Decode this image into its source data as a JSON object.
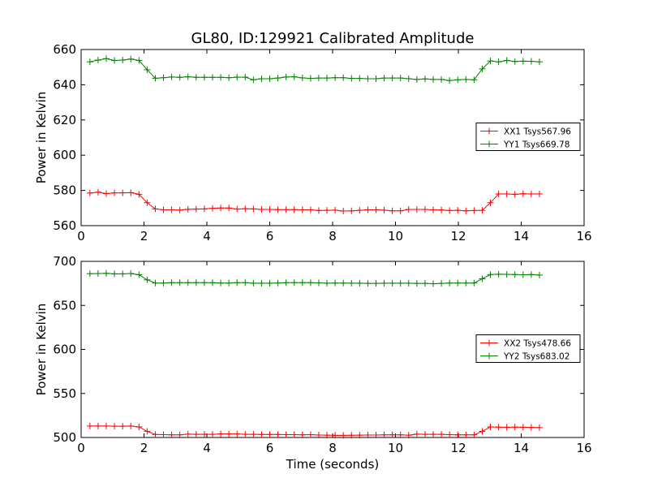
{
  "title": "GL80, ID:129921 Calibrated Amplitude",
  "chart_data": [
    {
      "type": "line",
      "ylabel": "Power in Kelvin",
      "xlabel": "",
      "xlim": [
        0,
        16
      ],
      "ylim": [
        560,
        660
      ],
      "xticks": [
        "0",
        "2",
        "4",
        "6",
        "8",
        "10",
        "12",
        "14",
        "16"
      ],
      "yticks": [
        "560",
        "580",
        "600",
        "620",
        "640",
        "660"
      ],
      "legend_position": "center-right",
      "grid": false,
      "x": [
        0.28,
        0.54,
        0.8,
        1.06,
        1.32,
        1.58,
        1.84,
        2.1,
        2.36,
        2.62,
        2.88,
        3.14,
        3.4,
        3.66,
        3.92,
        4.18,
        4.44,
        4.7,
        4.96,
        5.22,
        5.48,
        5.74,
        6.0,
        6.26,
        6.52,
        6.78,
        7.04,
        7.3,
        7.56,
        7.82,
        8.08,
        8.34,
        8.6,
        8.86,
        9.12,
        9.38,
        9.64,
        9.9,
        10.16,
        10.42,
        10.68,
        10.94,
        11.2,
        11.46,
        11.72,
        11.98,
        12.24,
        12.5,
        12.76,
        13.02,
        13.28,
        13.54,
        13.8,
        14.06,
        14.32,
        14.58
      ],
      "series": [
        {
          "name": "XX1 Tsys567.96",
          "color": "#ff0000",
          "values": [
            578.5,
            579,
            578.2,
            578.6,
            578.6,
            578.7,
            577.8,
            573,
            569.5,
            569,
            569,
            568.8,
            569.3,
            569.4,
            569.5,
            569.8,
            570,
            570,
            569.4,
            569.6,
            569.5,
            569.2,
            569.2,
            569.1,
            569.1,
            569.1,
            569,
            569,
            568.6,
            568.7,
            568.8,
            568.3,
            568.4,
            568.7,
            569,
            569,
            568.8,
            568.4,
            568.4,
            569.2,
            569.2,
            569.2,
            569,
            568.9,
            568.6,
            568.7,
            568.4,
            568.6,
            568.7,
            573,
            578,
            578,
            577.8,
            578.1,
            578,
            578
          ]
        },
        {
          "name": "YY1 Tsys669.78",
          "color": "#008000",
          "values": [
            653,
            654,
            654.8,
            653.8,
            654,
            654.6,
            653.8,
            648.5,
            643.7,
            644,
            644.4,
            644.2,
            644.5,
            644.2,
            644.2,
            644.2,
            644.2,
            644,
            644.3,
            644.3,
            642.8,
            643.4,
            643.4,
            643.8,
            644.4,
            644.5,
            643.9,
            643.6,
            643.8,
            643.8,
            644,
            644,
            643.6,
            643.6,
            643.4,
            643.4,
            643.8,
            643.8,
            643.8,
            643.4,
            643,
            643.3,
            643,
            643,
            642.4,
            642.8,
            643,
            642.8,
            649,
            653.5,
            653,
            653.8,
            653.2,
            653.4,
            653.3,
            653
          ]
        }
      ]
    },
    {
      "type": "line",
      "ylabel": "Power in Kelvin",
      "xlabel": "Time (seconds)",
      "xlim": [
        0,
        16
      ],
      "ylim": [
        500,
        700
      ],
      "xticks": [
        "0",
        "2",
        "4",
        "6",
        "8",
        "10",
        "12",
        "14",
        "16"
      ],
      "yticks": [
        "500",
        "550",
        "600",
        "650",
        "700"
      ],
      "legend_position": "center-right",
      "grid": false,
      "x": [
        0.28,
        0.54,
        0.8,
        1.06,
        1.32,
        1.58,
        1.84,
        2.1,
        2.36,
        2.62,
        2.88,
        3.14,
        3.4,
        3.66,
        3.92,
        4.18,
        4.44,
        4.7,
        4.96,
        5.22,
        5.48,
        5.74,
        6.0,
        6.26,
        6.52,
        6.78,
        7.04,
        7.3,
        7.56,
        7.82,
        8.08,
        8.34,
        8.6,
        8.86,
        9.12,
        9.38,
        9.64,
        9.9,
        10.16,
        10.42,
        10.68,
        10.94,
        11.2,
        11.46,
        11.72,
        11.98,
        12.24,
        12.5,
        12.76,
        13.02,
        13.28,
        13.54,
        13.8,
        14.06,
        14.32,
        14.58
      ],
      "series": [
        {
          "name": "XX2 Tsys478.66",
          "color": "#ff0000",
          "values": [
            513,
            513,
            513,
            512.8,
            512.8,
            513,
            512,
            507,
            503.4,
            503.2,
            503,
            503,
            503.8,
            503.6,
            503.6,
            503.6,
            504,
            504,
            504,
            503.6,
            503.6,
            503.4,
            503.4,
            503.4,
            503.2,
            503.2,
            503,
            503.2,
            502.8,
            502.6,
            502.4,
            502.4,
            502.5,
            502.6,
            502.8,
            502.8,
            503,
            503,
            503,
            502.6,
            503.8,
            503.6,
            503.6,
            503.6,
            503.2,
            503,
            503,
            503,
            507,
            512,
            511.8,
            511.6,
            511.8,
            511.6,
            511.4,
            511.2
          ]
        },
        {
          "name": "YY2 Tsys683.02",
          "color": "#008000",
          "values": [
            686,
            686.2,
            686.4,
            685.8,
            685.8,
            686.2,
            684.8,
            679,
            675.4,
            675.4,
            675.8,
            675.8,
            675.8,
            675.8,
            675.8,
            675.8,
            675.4,
            675.4,
            675.8,
            675.8,
            675.2,
            675.2,
            675.2,
            675.4,
            675.8,
            675.8,
            675.8,
            675.8,
            675.6,
            675.2,
            675.4,
            675.4,
            675.2,
            675.2,
            675,
            675,
            675.2,
            675.2,
            675.2,
            675.2,
            675,
            675,
            674.6,
            675,
            675.4,
            675.4,
            675.4,
            675.4,
            680.2,
            685,
            685.4,
            685.2,
            685,
            684.8,
            685,
            684.4
          ]
        }
      ]
    }
  ]
}
